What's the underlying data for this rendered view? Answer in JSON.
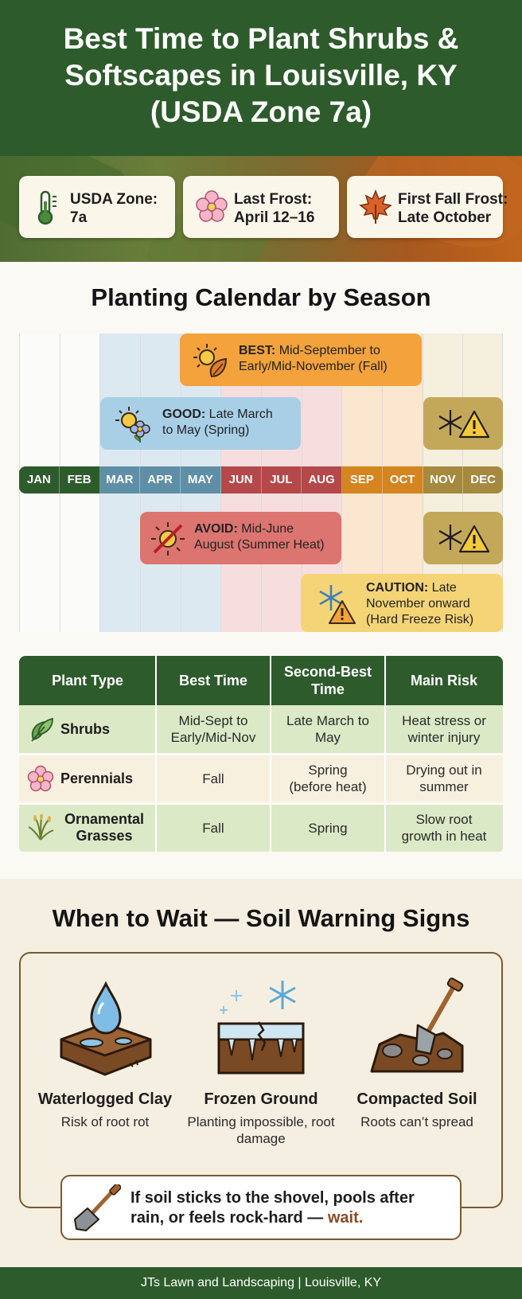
{
  "header": {
    "title": "Best Time to Plant Shrubs & Softscapes in Louisville, KY (USDA Zone 7a)"
  },
  "info_cards": [
    {
      "icon": "thermometer-icon",
      "line1": "USDA Zone:",
      "line2": "7a"
    },
    {
      "icon": "flower-icon",
      "line1": "Last Frost:",
      "line2": "April 12–16"
    },
    {
      "icon": "maple-leaf-icon",
      "line1": "First Fall Frost:",
      "line2": "Late October"
    }
  ],
  "calendar": {
    "title": "Planting Calendar by Season",
    "months": [
      "JAN",
      "FEB",
      "MAR",
      "APR",
      "MAY",
      "JUN",
      "JUL",
      "AUG",
      "SEP",
      "OCT",
      "NOV",
      "DEC"
    ],
    "best": {
      "label": "BEST:",
      "text_line1": "Mid-September to",
      "text_line2": "Early/Mid-November (Fall)"
    },
    "good": {
      "label": "GOOD:",
      "text_line1": "Late March",
      "text_line2": "to May (Spring)"
    },
    "avoid": {
      "label": "AVOID:",
      "text_line1": "Mid-June",
      "text_line2": "August (Summer Heat)"
    },
    "caution": {
      "label": "CAUTION:",
      "text_line1": "Late",
      "text_line2": "November onward",
      "text_line3": "(Hard Freeze Risk)"
    },
    "colors": {
      "green": "#2e5b2c",
      "blue": "#5f8fa6",
      "red": "#b5484a",
      "orange": "#d4851f",
      "tan": "#a5893f"
    }
  },
  "table": {
    "headers": [
      "Plant Type",
      "Best Time",
      "Second-Best Time",
      "Main Risk"
    ],
    "rows": [
      {
        "icon": "leaf-icon",
        "type": "Shrubs",
        "best": "Mid-Sept to Early/Mid-Nov",
        "second": "Late March to May",
        "risk": "Heat stress or winter injury"
      },
      {
        "icon": "flower-icon",
        "type": "Perennials",
        "best": "Fall",
        "second": "Spring (before heat)",
        "risk": "Drying out in summer"
      },
      {
        "icon": "grass-icon",
        "type": "Ornamental Grasses",
        "best": "Fall",
        "second": "Spring",
        "risk": "Slow root growth in heat"
      }
    ]
  },
  "warning": {
    "title": "When to Wait — Soil Warning Signs",
    "signs": [
      {
        "icon": "waterlogged-soil-icon",
        "title": "Waterlogged Clay",
        "desc": "Risk of root rot"
      },
      {
        "icon": "frozen-ground-icon",
        "title": "Frozen Ground",
        "desc": "Planting impossible, root damage"
      },
      {
        "icon": "shovel-soil-icon",
        "title": "Compacted Soil",
        "desc": "Roots can’t spread"
      }
    ],
    "tip_line1": "If soil sticks to the shovel, pools after",
    "tip_line2": "rain, or feels rock-hard — ",
    "tip_emph": "wait."
  },
  "footer": {
    "text": "JTs Lawn and Landscaping | Louisville, KY"
  }
}
